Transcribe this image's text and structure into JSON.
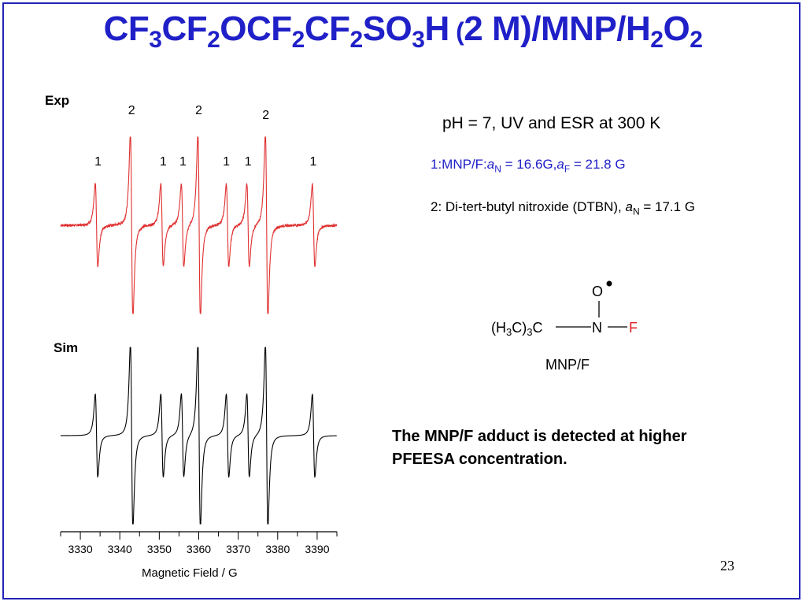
{
  "slide": {
    "title_parts": [
      "CF",
      "3",
      "CF",
      "2",
      "OCF",
      "2",
      "CF",
      "2",
      "SO",
      "3",
      "H",
      " (",
      "2 M)/MNP/H",
      "2",
      "O",
      "2"
    ],
    "page_number": "23",
    "ph_text": "pH = 7, UV and ESR at 300 K",
    "species1": {
      "prefix": "1:MNP/F:",
      "a1": "a",
      "a1_sub": "N",
      "mid": " = 16.6G,",
      "a2": "a",
      "a2_sub": "F",
      "suffix": " = 21.8 G"
    },
    "species2": {
      "prefix": "2: Di-tert-butyl nitroxide (DTBN), ",
      "a": "a",
      "a_sub": "N",
      "suffix": " = 17.1 G"
    },
    "structure": {
      "left": "(H",
      "left_sub1": "3",
      "left_mid": "C)",
      "left_sub2": "3",
      "left_end": "C",
      "n": "N",
      "f": "F",
      "o": "O",
      "caption": "MNP/F"
    },
    "conclusion_line1": "The MNP/F adduct is detected at higher",
    "conclusion_line2": "PFEESA concentration."
  },
  "colors": {
    "title": "#2020c8",
    "exp_trace": "#e03030",
    "sim_trace": "#000000",
    "fluorine": "#e02020"
  },
  "chart_data": {
    "type": "line",
    "xlabel": "Magnetic Field / G",
    "xlim": [
      3325,
      3395
    ],
    "x_ticks": [
      3330,
      3340,
      3350,
      3360,
      3370,
      3380,
      3390
    ],
    "panels": [
      {
        "name": "Exp",
        "peak_labels": [
          {
            "label": "1",
            "field": 3334.5
          },
          {
            "label": "2",
            "field": 3343.0
          },
          {
            "label": "1",
            "field": 3351.0
          },
          {
            "label": "1",
            "field": 3356.0
          },
          {
            "label": "2",
            "field": 3360.0
          },
          {
            "label": "1",
            "field": 3367.0
          },
          {
            "label": "1",
            "field": 3372.5
          },
          {
            "label": "2",
            "field": 3377.0
          },
          {
            "label": "1",
            "field": 3389.0
          }
        ]
      },
      {
        "name": "Sim"
      }
    ],
    "lines": [
      {
        "species": "2",
        "center": 3343.0,
        "amp": 1.0
      },
      {
        "species": "2",
        "center": 3360.1,
        "amp": 1.0
      },
      {
        "species": "2",
        "center": 3377.2,
        "amp": 1.0
      },
      {
        "species": "1",
        "center": 3334.1,
        "amp": 0.45
      },
      {
        "species": "1",
        "center": 3350.7,
        "amp": 0.45
      },
      {
        "species": "1",
        "center": 3355.9,
        "amp": 0.45
      },
      {
        "species": "1",
        "center": 3367.3,
        "amp": 0.45
      },
      {
        "species": "1",
        "center": 3372.5,
        "amp": 0.45
      },
      {
        "species": "1",
        "center": 3389.1,
        "amp": 0.45
      }
    ]
  }
}
